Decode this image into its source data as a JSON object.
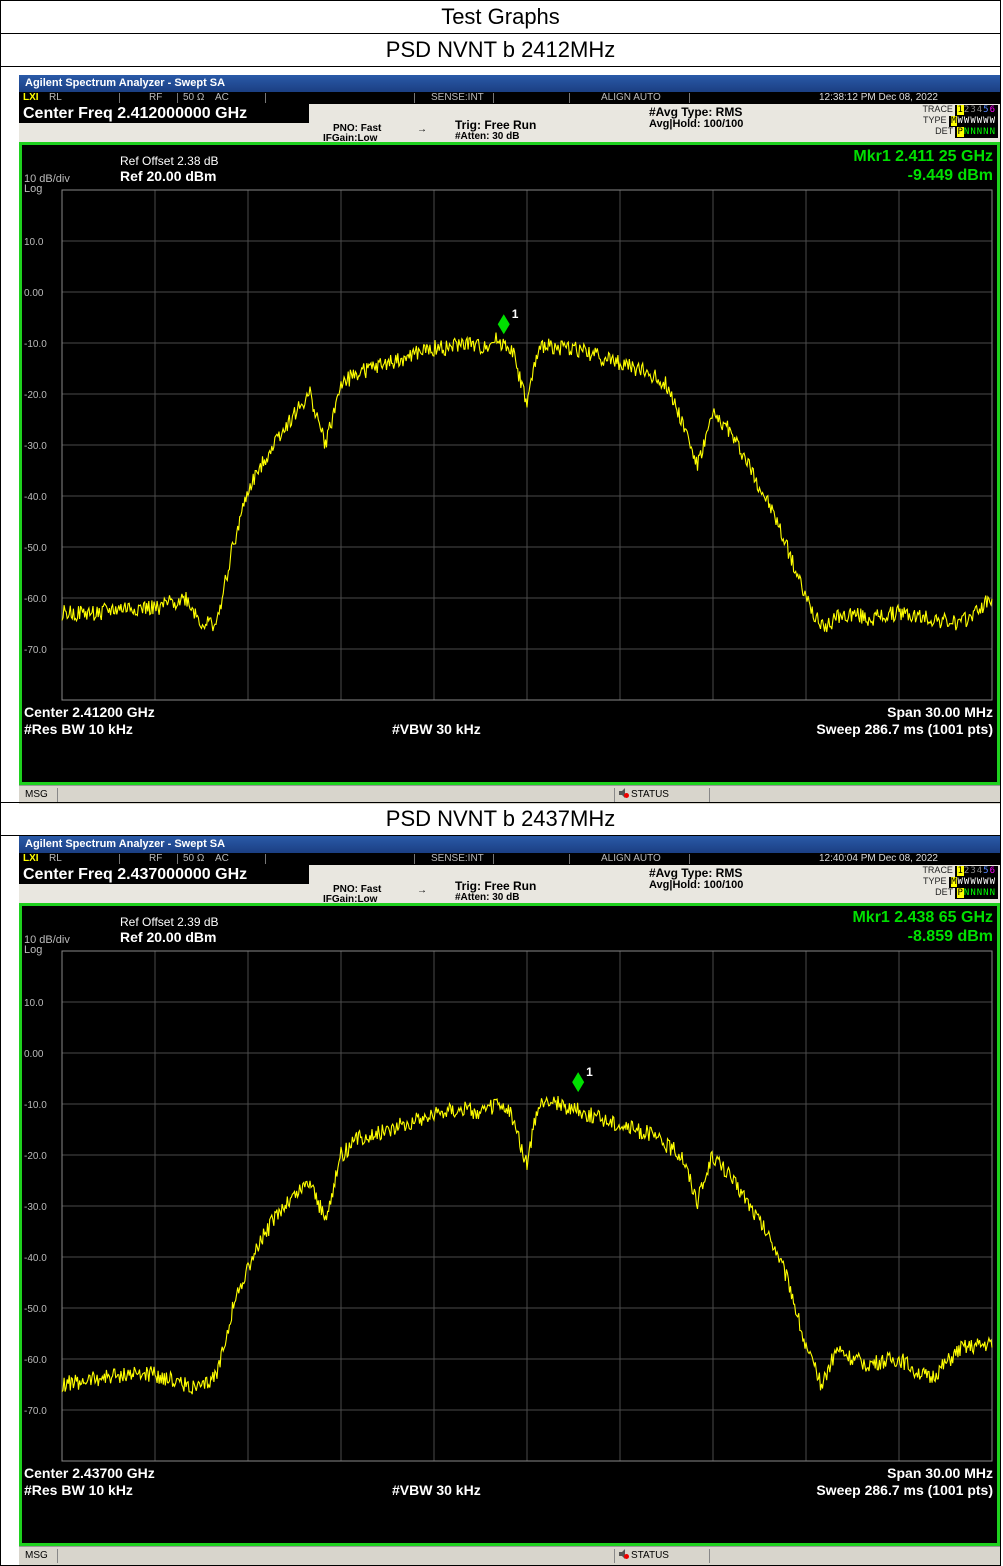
{
  "document": {
    "section_title": "Test Graphs"
  },
  "analyzer_common": {
    "window_title": "Agilent Spectrum Analyzer - Swept SA",
    "rl": "RL",
    "rf": "RF",
    "impedance": "50 Ω",
    "coupling": "AC",
    "sense": "SENSE:INT",
    "align": "ALIGN AUTO",
    "pno": "PNO: Fast",
    "ifgain": "IFGain:Low",
    "trig": "Trig: Free Run",
    "atten": "#Atten: 30 dB",
    "avg_type": "#Avg Type: RMS",
    "avg_hold": "Avg|Hold: 100/100",
    "trace_label": "TRACE",
    "type_label": "TYPE",
    "det_label": "DET",
    "trace_digits": "123456",
    "type_value": "MWWWWWW",
    "det_value": "PNNNNN",
    "scale": "10 dB/div",
    "log": "Log",
    "res_bw": "#Res BW 10 kHz",
    "vbw": "#VBW 30 kHz",
    "span": "Span 30.00 MHz",
    "sweep": "Sweep  286.7 ms (1001 pts)",
    "msg": "MSG",
    "status": "STATUS",
    "marker_number": "1",
    "ref_level": "Ref 20.00 dBm",
    "y_ticks": [
      "10.0",
      "0.00",
      "-10.0",
      "-20.0",
      "-30.0",
      "-40.0",
      "-50.0",
      "-60.0",
      "-70.0"
    ],
    "colors": {
      "trace": "#ffff00",
      "marker": "#00e000",
      "grid": "#4a4a4a",
      "frame": "#1ed11e"
    }
  },
  "plots": [
    {
      "caption": "PSD NVNT b 2412MHz",
      "timestamp": "12:38:12 PM Dec 08, 2022",
      "center_freq_header": "Center Freq 2.412000000 GHz",
      "ref_offset": "Ref Offset 2.38 dB",
      "marker_freq": "Mkr1 2.411 25 GHz",
      "marker_level": "-9.449 dBm",
      "center_label": "Center 2.41200 GHz",
      "chart_data": {
        "type": "line",
        "xlabel": "",
        "ylabel": "",
        "xlim": [
          2397.0,
          2427.0
        ],
        "ylim": [
          -80,
          20
        ],
        "x_unit": "MHz",
        "y_unit": "dBm",
        "grid": true,
        "marker": {
          "x": 2411.25,
          "y": -9.449
        },
        "x": [
          2397.0,
          2398.0,
          2399.0,
          2400.0,
          2401.0,
          2401.5,
          2402.0,
          2402.5,
          2403.0,
          2403.5,
          2404.0,
          2404.5,
          2405.0,
          2405.5,
          2406.0,
          2406.5,
          2407.0,
          2407.5,
          2408.0,
          2408.5,
          2409.0,
          2409.5,
          2410.0,
          2410.5,
          2411.0,
          2411.5,
          2412.0,
          2412.3,
          2412.6,
          2413.0,
          2413.5,
          2414.0,
          2414.5,
          2415.0,
          2415.5,
          2416.0,
          2416.5,
          2417.0,
          2417.5,
          2418.0,
          2418.5,
          2419.0,
          2419.5,
          2420.0,
          2420.5,
          2421.0,
          2421.5,
          2422.0,
          2422.5,
          2423.0,
          2424.0,
          2425.0,
          2426.0,
          2427.0
        ],
        "y": [
          -63,
          -63,
          -62,
          -62,
          -60,
          -65,
          -65,
          -50,
          -39,
          -33,
          -28,
          -24,
          -20,
          -30,
          -18,
          -16,
          -15,
          -14,
          -13,
          -12,
          -11,
          -11,
          -10,
          -11,
          -9.5,
          -11,
          -22,
          -13,
          -10,
          -11,
          -11,
          -12,
          -13,
          -14,
          -15,
          -16,
          -18,
          -25,
          -34,
          -24,
          -27,
          -32,
          -38,
          -44,
          -52,
          -60,
          -66,
          -64,
          -63,
          -64,
          -63,
          -64,
          -65,
          -60
        ]
      }
    },
    {
      "caption": "PSD NVNT b 2437MHz",
      "timestamp": "12:40:04 PM Dec 08, 2022",
      "center_freq_header": "Center Freq 2.437000000 GHz",
      "ref_offset": "Ref Offset 2.39 dB",
      "marker_freq": "Mkr1 2.438 65 GHz",
      "marker_level": "-8.859 dBm",
      "center_label": "Center 2.43700 GHz",
      "chart_data": {
        "type": "line",
        "xlabel": "",
        "ylabel": "",
        "xlim": [
          2422.0,
          2452.0
        ],
        "ylim": [
          -80,
          20
        ],
        "x_unit": "MHz",
        "y_unit": "dBm",
        "grid": true,
        "marker": {
          "x": 2438.65,
          "y": -8.859
        },
        "x": [
          2422.0,
          2423.0,
          2424.0,
          2425.0,
          2426.0,
          2426.5,
          2427.0,
          2427.5,
          2428.0,
          2428.5,
          2429.0,
          2429.5,
          2430.0,
          2430.5,
          2431.0,
          2431.5,
          2432.0,
          2432.5,
          2433.0,
          2433.5,
          2434.0,
          2434.5,
          2435.0,
          2435.5,
          2436.0,
          2436.5,
          2437.0,
          2437.3,
          2437.6,
          2438.0,
          2438.5,
          2439.0,
          2439.5,
          2440.0,
          2440.5,
          2441.0,
          2441.5,
          2442.0,
          2442.5,
          2443.0,
          2443.5,
          2444.0,
          2444.5,
          2445.0,
          2445.5,
          2446.0,
          2446.5,
          2447.0,
          2447.5,
          2448.0,
          2449.0,
          2450.0,
          2451.0,
          2452.0
        ],
        "y": [
          -65,
          -64,
          -63,
          -63,
          -65,
          -66,
          -63,
          -50,
          -42,
          -36,
          -31,
          -28,
          -25,
          -33,
          -20,
          -17,
          -16,
          -15,
          -14,
          -13,
          -12,
          -11,
          -11,
          -12,
          -10,
          -12,
          -22,
          -12,
          -9,
          -10,
          -11,
          -12,
          -13,
          -14,
          -15,
          -16,
          -18,
          -20,
          -29,
          -20,
          -24,
          -28,
          -33,
          -38,
          -46,
          -58,
          -65,
          -58,
          -60,
          -61,
          -60,
          -64,
          -58,
          -57
        ]
      }
    }
  ]
}
